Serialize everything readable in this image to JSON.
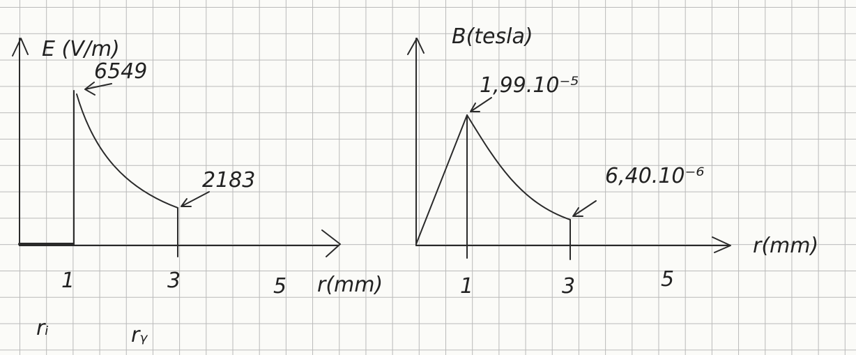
{
  "left": {
    "axis_label": "E (V/m)",
    "peak_label": "6549",
    "end_label": "2183",
    "x_ticks": [
      "1",
      "3",
      "5"
    ],
    "x_axis_label": "r(mm)",
    "markers": [
      "rᵢ",
      "rᵧ"
    ]
  },
  "right": {
    "axis_label": "B(tesla)",
    "peak_label": "1,99.10⁻⁵",
    "end_label": "6,40.10⁻⁶",
    "x_ticks": [
      "1",
      "3",
      "5"
    ],
    "x_axis_label": "r(mm)"
  }
}
